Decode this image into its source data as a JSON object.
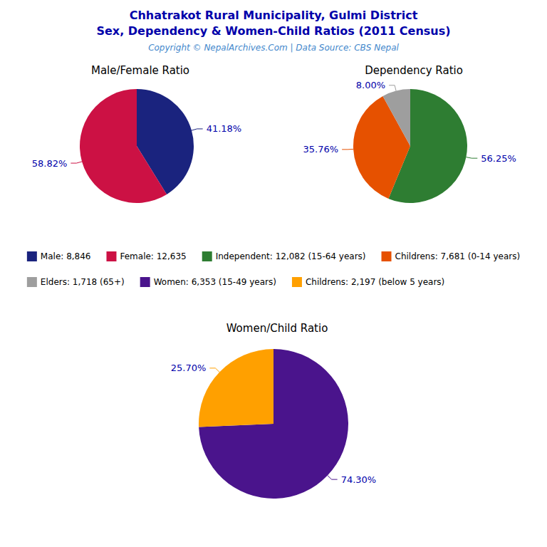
{
  "title": "Chhatrakot Rural Municipality, Gulmi District",
  "subtitle": "Sex, Dependency & Women-Child Ratios (2011 Census)",
  "annotations": [
    "Copyright © NepalArchives.Com | Data Source: CBS Nepal"
  ],
  "legend": "center",
  "chart_data": [
    {
      "type": "pie",
      "title": "Male/Female Ratio",
      "categories": [
        "Male: 8,846",
        "Female: 12,635"
      ],
      "values": [
        41.18,
        58.82
      ],
      "value_labels": [
        "41.18%",
        "58.82%"
      ],
      "colors": [
        "#1a237e",
        "#cc1144"
      ],
      "data_labels": true
    },
    {
      "type": "pie",
      "title": "Dependency Ratio",
      "categories": [
        "Independent: 12,082 (15-64 years)",
        "Childrens: 7,681 (0-14 years)",
        "Elders: 1,718 (65+)"
      ],
      "values": [
        56.25,
        35.76,
        8.0
      ],
      "value_labels": [
        "56.25%",
        "35.76%",
        "8.00%"
      ],
      "colors": [
        "#2e7d32",
        "#e65100",
        "#9e9e9e"
      ],
      "data_labels": true
    },
    {
      "type": "pie",
      "title": "Women/Child Ratio",
      "categories": [
        "Women: 6,353 (15-49 years)",
        "Childrens: 2,197 (below 5 years)"
      ],
      "values": [
        74.3,
        25.7
      ],
      "value_labels": [
        "74.30%",
        "25.70%"
      ],
      "colors": [
        "#4a148c",
        "#ffa000"
      ],
      "data_labels": true
    }
  ]
}
